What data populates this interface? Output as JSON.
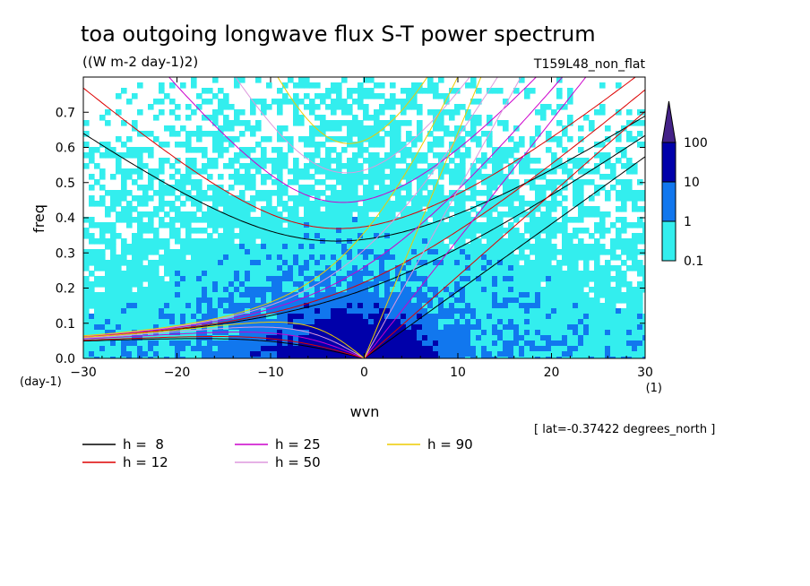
{
  "chart_data": {
    "type": "heatmap",
    "title": "toa outgoing longwave flux S-T power spectrum",
    "subtitle": "((W m-2 day-1)2)",
    "run_label": "T159L48_non_flat",
    "xlabel": "wvn",
    "ylabel": "freq",
    "x_unit": "(1)",
    "y_unit": "(day-1)",
    "xlim": [
      -30,
      30
    ],
    "ylim": [
      0,
      0.8
    ],
    "x_ticks": [
      "-30",
      "-20",
      "-10",
      "0",
      "10",
      "20",
      "30"
    ],
    "y_ticks": [
      "0.0",
      "0.1",
      "0.2",
      "0.3",
      "0.4",
      "0.5",
      "0.6",
      "0.7"
    ],
    "annotation": "[ lat=-0.37422 degrees_north ]",
    "colorbar": {
      "levels": [
        "0.1",
        "1",
        "10",
        "100"
      ],
      "colors": [
        "#33eeee",
        "#1177ee",
        "#0000aa",
        "#442288"
      ]
    },
    "dispersion_curves": [
      {
        "label": "h =  8",
        "h": 8,
        "color": "#000000"
      },
      {
        "label": "h = 12",
        "h": 12,
        "color": "#dd0000"
      },
      {
        "label": "h = 25",
        "h": 25,
        "color": "#cc00cc"
      },
      {
        "label": "h = 50",
        "h": 50,
        "color": "#dd99dd"
      },
      {
        "label": "h = 90",
        "h": 90,
        "color": "#eecc00"
      }
    ]
  }
}
